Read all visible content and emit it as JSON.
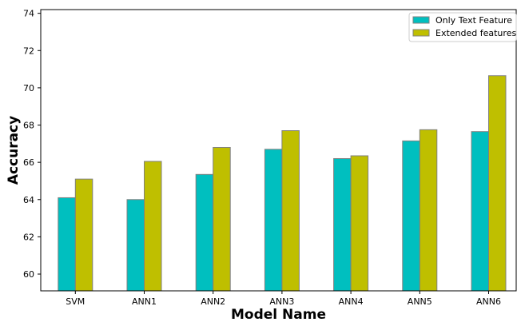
{
  "chart_data": {
    "type": "bar",
    "categories": [
      "SVM",
      "ANN1",
      "ANN2",
      "ANN3",
      "ANN4",
      "ANN5",
      "ANN6"
    ],
    "series": [
      {
        "name": "Only Text Feature",
        "color": "#00BFBF",
        "values": [
          64.1,
          64.0,
          65.35,
          66.7,
          66.2,
          67.15,
          67.65
        ]
      },
      {
        "name": "Extended features",
        "color": "#BFBF00",
        "values": [
          65.1,
          66.05,
          66.8,
          67.7,
          66.35,
          67.75,
          70.65
        ]
      }
    ],
    "title": "",
    "xlabel": "Model Name",
    "ylabel": "Accuracy",
    "ylim": [
      59.1,
      74.2
    ],
    "yticks": [
      60,
      62,
      64,
      66,
      68,
      70,
      72,
      74
    ],
    "grid": false,
    "legend_position": "top-right",
    "bar_edge_color": "#808080"
  }
}
